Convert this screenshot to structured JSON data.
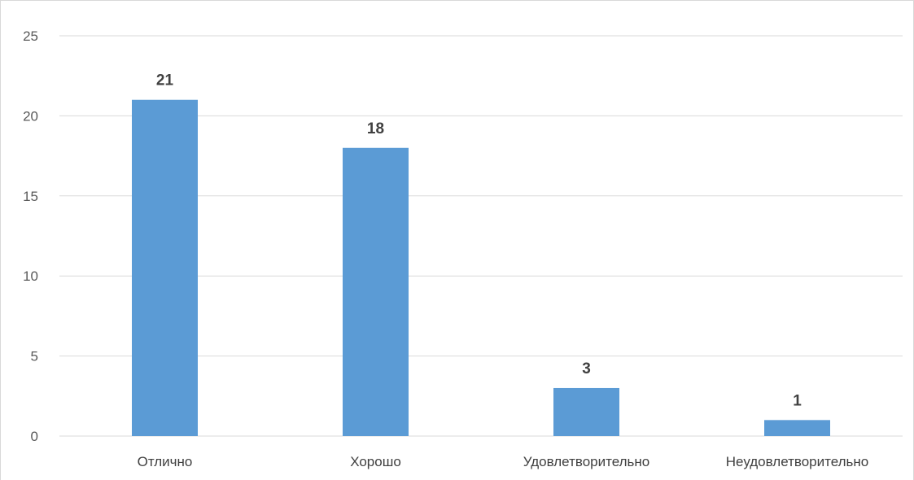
{
  "chart_data": {
    "type": "bar",
    "categories": [
      "Отлично",
      "Хорошо",
      "Удовлетворительно",
      "Неудовлетворительно"
    ],
    "values": [
      21,
      18,
      3,
      1
    ],
    "data_labels": [
      "21",
      "18",
      "3",
      "1"
    ],
    "y_ticks": [
      "0",
      "5",
      "10",
      "15",
      "20",
      "25"
    ],
    "ylim": [
      0,
      25
    ],
    "y_step": 5,
    "grid": true,
    "legend": "none",
    "bar_color": "#5b9bd5",
    "title": "",
    "xlabel": "",
    "ylabel": ""
  }
}
